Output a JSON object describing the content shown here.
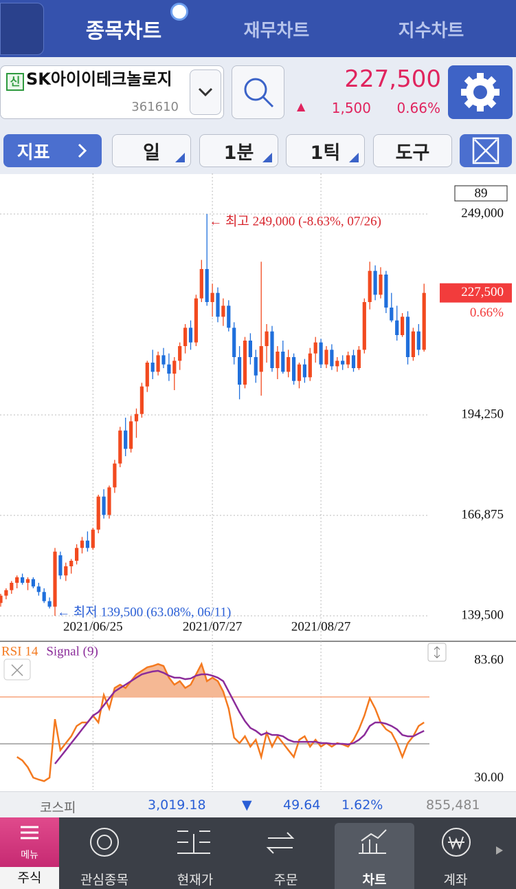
{
  "tabs": [
    "종목차트",
    "재무차트",
    "지수차트"
  ],
  "stock": {
    "badge": "신",
    "name": "SK아이이테크놀로지",
    "code": "361610",
    "change_sign": "▲",
    "change": "1,500"
  },
  "toolbar": {
    "indicator": "지표",
    "buttons": [
      "일",
      "1분",
      "1틱",
      "도구"
    ]
  },
  "market": {
    "name": "코스피",
    "index": "3,019.18",
    "sign": "▼",
    "change": "49.64",
    "pct": "1.62%",
    "volume": "855,481"
  },
  "nav": {
    "menu": "메뉴",
    "items": [
      "주식",
      "관심종목",
      "현재가",
      "주문",
      "차트",
      "계좌"
    ]
  },
  "chart_data": [
    {
      "type": "candlestick",
      "categories": [
        null,
        null,
        null,
        null,
        null,
        null,
        null,
        null,
        null,
        null,
        null,
        null,
        null,
        null,
        null,
        null,
        null,
        "2021/06/25",
        null,
        null,
        null,
        null,
        null,
        null,
        null,
        null,
        null,
        null,
        null,
        null,
        null,
        null,
        null,
        null,
        null,
        null,
        null,
        null,
        null,
        "2021/07/27",
        null,
        null,
        null,
        null,
        null,
        null,
        null,
        null,
        null,
        null,
        null,
        null,
        null,
        null,
        null,
        null,
        null,
        null,
        null,
        "2021/08/27",
        null,
        null,
        null,
        null,
        null,
        null,
        null,
        null,
        null,
        null,
        null,
        null,
        null,
        null,
        null,
        null,
        null,
        null,
        null
      ],
      "ohlc": [
        [
          143000,
          145500,
          142000,
          145000
        ],
        [
          145000,
          147000,
          144000,
          146500
        ],
        [
          146500,
          149000,
          145500,
          148500
        ],
        [
          148500,
          150500,
          147000,
          150000
        ],
        [
          150000,
          151000,
          148000,
          148500
        ],
        [
          148500,
          150000,
          146500,
          149500
        ],
        [
          149500,
          150000,
          147000,
          147500
        ],
        [
          147500,
          148500,
          145000,
          146000
        ],
        [
          146000,
          147000,
          143000,
          143500
        ],
        [
          143500,
          144500,
          141500,
          142000
        ],
        [
          142000,
          158000,
          139500,
          157000
        ],
        [
          156000,
          157000,
          149500,
          150500
        ],
        [
          150500,
          154000,
          149000,
          153000
        ],
        [
          153000,
          155000,
          151000,
          154500
        ],
        [
          154500,
          159000,
          153500,
          158000
        ],
        [
          158000,
          161000,
          156500,
          160000
        ],
        [
          160000,
          162500,
          157000,
          158000
        ],
        [
          158000,
          163500,
          157500,
          163000
        ],
        [
          163000,
          172500,
          162000,
          172000
        ],
        [
          172000,
          174000,
          166000,
          167000
        ],
        [
          167000,
          175000,
          166000,
          174500
        ],
        [
          174500,
          182000,
          173000,
          181000
        ],
        [
          181000,
          191000,
          180000,
          190000
        ],
        [
          190000,
          193500,
          183000,
          185000
        ],
        [
          185000,
          194000,
          184000,
          192500
        ],
        [
          192500,
          196000,
          188000,
          194500
        ],
        [
          194500,
          203000,
          193500,
          202000
        ],
        [
          202000,
          209000,
          200500,
          208500
        ],
        [
          208500,
          212000,
          204000,
          206000
        ],
        [
          206000,
          211500,
          205000,
          210500
        ],
        [
          210500,
          212500,
          207000,
          208000
        ],
        [
          208000,
          211000,
          203500,
          205500
        ],
        [
          205500,
          210000,
          201000,
          209000
        ],
        [
          209000,
          214000,
          206500,
          213000
        ],
        [
          213000,
          219000,
          211000,
          218000
        ],
        [
          218000,
          220000,
          212000,
          214000
        ],
        [
          214000,
          227000,
          213000,
          226000
        ],
        [
          226000,
          236500,
          225000,
          234000
        ],
        [
          234000,
          249000,
          224000,
          225000
        ],
        [
          225000,
          230000,
          221000,
          227500
        ],
        [
          227500,
          229000,
          219500,
          221000
        ],
        [
          221000,
          226000,
          218500,
          224000
        ],
        [
          224000,
          225500,
          217000,
          218000
        ],
        [
          218000,
          219500,
          208000,
          210000
        ],
        [
          210000,
          213000,
          198500,
          202500
        ],
        [
          202500,
          215500,
          201500,
          214500
        ],
        [
          214500,
          216500,
          208000,
          210000
        ],
        [
          210000,
          212000,
          203000,
          205000
        ],
        [
          206000,
          236000,
          199500,
          213000
        ],
        [
          213000,
          219000,
          208500,
          217000
        ],
        [
          217000,
          218500,
          206000,
          207000
        ],
        [
          207000,
          213000,
          204000,
          211500
        ],
        [
          211500,
          214500,
          205500,
          206000
        ],
        [
          206000,
          212000,
          204500,
          210000
        ],
        [
          210000,
          211000,
          202500,
          203500
        ],
        [
          203500,
          208500,
          201500,
          208000
        ],
        [
          208000,
          209500,
          203000,
          204500
        ],
        [
          204500,
          212500,
          203500,
          211000
        ],
        [
          211000,
          215500,
          208500,
          214000
        ],
        [
          214000,
          215000,
          207000,
          208000
        ],
        [
          208000,
          213000,
          207000,
          212000
        ],
        [
          212000,
          213500,
          206500,
          207500
        ],
        [
          207500,
          210000,
          206000,
          209000
        ],
        [
          209000,
          210500,
          206500,
          208000
        ],
        [
          208000,
          211500,
          207000,
          210500
        ],
        [
          210500,
          212000,
          206000,
          207000
        ],
        [
          207000,
          213000,
          206500,
          212000
        ],
        [
          212000,
          226000,
          211000,
          225000
        ],
        [
          225000,
          236000,
          223000,
          233500
        ],
        [
          233500,
          235000,
          225500,
          227000
        ],
        [
          227000,
          234500,
          226000,
          232500
        ],
        [
          232500,
          233500,
          222000,
          223500
        ],
        [
          223500,
          227500,
          219500,
          220000
        ],
        [
          220000,
          224000,
          214500,
          216000
        ],
        [
          216000,
          222000,
          215500,
          221000
        ],
        [
          221000,
          222500,
          208000,
          210000
        ],
        [
          210000,
          218000,
          209000,
          217000
        ],
        [
          217000,
          219000,
          210500,
          212000
        ],
        [
          212000,
          230000,
          211500,
          227500
        ]
      ],
      "up_color": "#f24a1f",
      "down_color": "#1f6fdc",
      "ylim": [
        132937.5,
        256687.5
      ],
      "yticks": [
        {
          "value": 139500,
          "label": "139,500"
        },
        {
          "value": 166875,
          "label": "166,875"
        },
        {
          "value": 194250,
          "label": "194,250"
        },
        {
          "value": 249000,
          "label": "249,000"
        }
      ],
      "grid": true,
      "badge": "89",
      "annotations": [
        {
          "text": "← 최고 249,000 (-8.63%, 07/26)",
          "color": "#d8262e"
        },
        {
          "text": "← 최저 139,500 (63.08%, 06/11)",
          "color": "#2a5fd6"
        }
      ],
      "price_tag": {
        "value": 227500,
        "label": "227,500",
        "change": "0.66%",
        "color": "#f23c3c"
      }
    },
    {
      "type": "line",
      "series": [
        {
          "name": "RSI 14",
          "color": "#f47a20",
          "values": [
            null,
            null,
            null,
            39.7,
            38.1,
            35.0,
            30.3,
            29.4,
            28.7,
            30.3,
            56.9,
            42.8,
            46.0,
            49.1,
            53.8,
            55.4,
            55.4,
            58.5,
            55.4,
            67.9,
            61.7,
            71.1,
            72.6,
            71.1,
            74.2,
            77.3,
            78.9,
            80.5,
            81.1,
            82.0,
            81.1,
            75.8,
            72.6,
            74.2,
            71.1,
            72.6,
            77.3,
            82.0,
            74.2,
            75.8,
            74.2,
            69.5,
            61.7,
            48.5,
            46.0,
            49.1,
            44.4,
            47.5,
            39.7,
            50.7,
            44.4,
            49.1,
            46.0,
            42.8,
            39.7,
            47.5,
            49.1,
            44.4,
            47.5,
            44.4,
            46.0,
            44.4,
            46.0,
            45.4,
            44.4,
            47.5,
            52.3,
            58.5,
            66.4,
            61.7,
            55.4,
            52.3,
            50.7,
            46.0,
            39.7,
            46.0,
            49.1,
            53.8,
            55.4
          ]
        },
        {
          "name": "Signal (9)",
          "color": "#8b2c9a",
          "values": [
            null,
            null,
            null,
            null,
            null,
            null,
            null,
            null,
            null,
            null,
            36.6,
            39.7,
            42.8,
            46.0,
            49.1,
            52.3,
            55.4,
            58.5,
            60.1,
            63.2,
            66.4,
            69.5,
            71.1,
            72.6,
            74.2,
            75.8,
            77.3,
            78.0,
            78.6,
            78.9,
            78.0,
            76.7,
            75.8,
            75.8,
            75.1,
            75.4,
            76.7,
            77.3,
            77.3,
            76.7,
            75.8,
            74.2,
            69.5,
            64.8,
            60.1,
            56.0,
            52.9,
            51.6,
            49.7,
            50.7,
            49.7,
            49.7,
            49.1,
            47.5,
            46.6,
            46.6,
            46.6,
            46.6,
            46.6,
            46.0,
            46.0,
            45.7,
            45.7,
            45.7,
            45.4,
            46.0,
            47.5,
            49.7,
            53.8,
            55.4,
            55.4,
            54.8,
            53.8,
            52.3,
            49.7,
            49.1,
            49.1,
            50.4,
            51.6
          ]
        }
      ],
      "ylim": [
        24.7,
        91.4
      ],
      "yticks": [
        {
          "value": 83.6,
          "label": "83.60"
        },
        {
          "value": 30,
          "label": "30.00"
        }
      ],
      "levels": [
        {
          "value": 67,
          "color": "#f7a27a"
        },
        {
          "value": 45.7,
          "color": "#9a9a9a"
        }
      ],
      "fill_color": "#f5b894"
    }
  ]
}
